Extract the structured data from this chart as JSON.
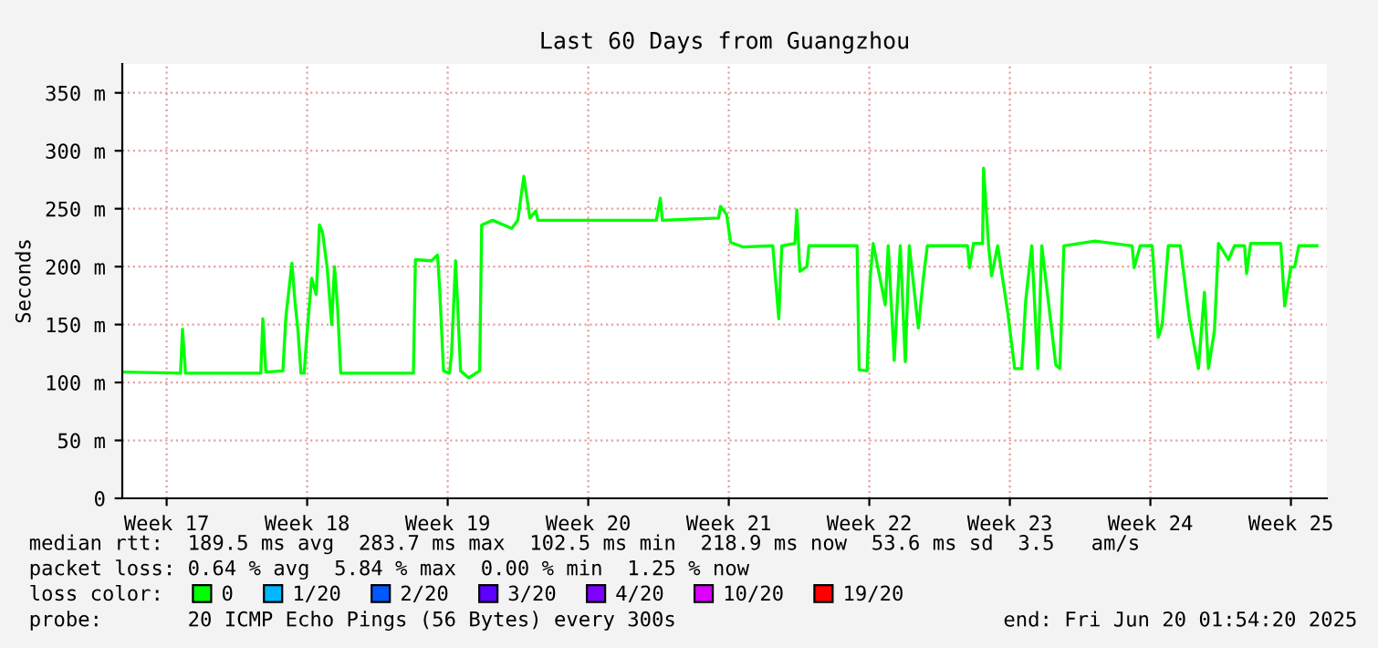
{
  "chart_data": {
    "type": "line",
    "title": "Last 60 Days from Guangzhou",
    "ylabel": "Seconds",
    "xlim": [
      "2025-04-22T07:00",
      "2025-06-21T07:00"
    ],
    "ylim": [
      0,
      375
    ],
    "xticks": [
      {
        "value": "2025-04-24T12:00",
        "label": "Week 17"
      },
      {
        "value": "2025-05-01T12:00",
        "label": "Week 18"
      },
      {
        "value": "2025-05-08T12:00",
        "label": "Week 19"
      },
      {
        "value": "2025-05-15T12:00",
        "label": "Week 20"
      },
      {
        "value": "2025-05-22T12:00",
        "label": "Week 21"
      },
      {
        "value": "2025-05-29T12:00",
        "label": "Week 22"
      },
      {
        "value": "2025-06-05T12:00",
        "label": "Week 23"
      },
      {
        "value": "2025-06-12T12:00",
        "label": "Week 24"
      },
      {
        "value": "2025-06-19T12:00",
        "label": "Week 25"
      }
    ],
    "yticks": [
      0,
      {
        "value": 50,
        "label": "50 m"
      },
      {
        "value": 100,
        "label": "100 m"
      },
      {
        "value": 150,
        "label": "150 m"
      },
      {
        "value": 200,
        "label": "200 m"
      },
      {
        "value": 250,
        "label": "250 m"
      },
      {
        "value": 300,
        "label": "300 m"
      },
      {
        "value": 350,
        "label": "350 m"
      }
    ],
    "grid": true,
    "legend": "bottom",
    "legend_title": "loss color:",
    "series": [
      {
        "name": "0",
        "color": "#00ff00",
        "x": [
          "2025-04-22T07:00",
          "2025-04-25T04:36",
          "2025-04-25T07:00",
          "2025-04-25T10:36",
          "2025-04-29T04:36",
          "2025-04-29T07:00",
          "2025-04-29T10:36",
          "2025-04-30T07:00",
          "2025-04-30T10:36",
          "2025-04-30T17:48",
          "2025-04-30T21:24",
          "2025-05-01T01:00",
          "2025-05-01T04:36",
          "2025-05-01T08:26",
          "2025-05-01T11:48",
          "2025-05-01T17:19",
          "2025-05-01T22:50",
          "2025-05-02T02:41",
          "2025-05-02T06:17",
          "2025-05-02T11:48",
          "2025-05-02T17:19",
          "2025-05-02T20:41",
          "2025-05-03T00:31",
          "2025-05-03T04:07",
          "2025-05-06T19:00",
          "2025-05-06T21:24",
          "2025-05-07T16:36",
          "2025-05-07T23:48",
          "2025-05-08T02:12",
          "2025-05-08T07:00",
          "2025-05-08T14:12",
          "2025-05-08T16:36",
          "2025-05-08T21:24",
          "2025-05-08T23:48",
          "2025-05-09T03:24",
          "2025-05-09T13:00",
          "2025-05-10T02:12",
          "2025-05-10T04:36",
          "2025-05-10T17:48",
          "2025-05-11T16:36",
          "2025-05-11T23:48",
          "2025-05-12T07:00",
          "2025-05-12T14:12",
          "2025-05-12T21:24",
          "2025-05-12T23:48",
          "2025-05-14T23:48",
          "2025-05-18T21:24",
          "2025-05-19T02:12",
          "2025-05-19T04:36",
          "2025-05-21T23:48",
          "2025-05-22T02:12",
          "2025-05-22T09:24",
          "2025-05-22T14:12",
          "2025-05-23T04:36",
          "2025-05-24T16:36",
          "2025-05-24T23:48",
          "2025-05-25T03:24",
          "2025-05-25T19:00",
          "2025-05-25T21:24",
          "2025-05-26T01:00",
          "2025-05-26T09:24",
          "2025-05-26T11:48",
          "2025-05-28T21:24",
          "2025-05-28T23:48",
          "2025-05-29T09:24",
          "2025-05-29T13:00",
          "2025-05-29T16:36",
          "2025-05-30T07:00",
          "2025-05-30T10:36",
          "2025-05-30T17:48",
          "2025-05-31T01:00",
          "2025-05-31T07:00",
          "2025-05-31T11:48",
          "2025-05-31T22:36",
          "2025-06-01T04:36",
          "2025-06-01T09:24",
          "2025-06-03T09:24",
          "2025-06-03T11:48",
          "2025-06-03T16:36",
          "2025-06-04T03:24",
          "2025-06-04T04:36",
          "2025-06-04T10:36",
          "2025-06-04T14:12",
          "2025-06-04T21:24",
          "2025-06-05T09:24",
          "2025-06-05T17:48",
          "2025-06-06T02:12",
          "2025-06-06T07:00",
          "2025-06-06T14:12",
          "2025-06-06T21:24",
          "2025-06-07T02:12",
          "2025-06-07T19:00",
          "2025-06-07T23:48",
          "2025-06-08T04:36",
          "2025-06-09T17:48",
          "2025-06-11T14:12",
          "2025-06-11T16:36",
          "2025-06-11T23:48",
          "2025-06-12T14:12",
          "2025-06-12T21:24",
          "2025-06-13T02:12",
          "2025-06-13T09:24",
          "2025-06-13T23:48",
          "2025-06-14T10:36",
          "2025-06-14T21:24",
          "2025-06-15T04:36",
          "2025-06-15T09:24",
          "2025-06-15T16:36",
          "2025-06-15T21:24",
          "2025-06-16T09:24",
          "2025-06-16T16:36",
          "2025-06-17T04:36",
          "2025-06-17T07:00",
          "2025-06-17T11:48",
          "2025-06-18T23:48",
          "2025-06-19T04:36",
          "2025-06-19T11:48",
          "2025-06-19T16:36",
          "2025-06-19T21:24",
          "2025-06-20T19:00"
        ],
        "values": [
          109,
          108,
          146,
          108,
          108,
          155,
          109,
          110,
          157,
          203,
          170,
          145,
          108,
          108,
          142,
          190,
          176,
          236,
          230,
          200,
          150,
          200,
          163,
          108,
          108,
          206,
          205,
          210,
          184,
          110,
          108,
          125,
          205,
          168,
          110,
          104,
          110,
          236,
          240,
          233,
          240,
          278,
          242,
          248,
          240,
          240,
          240,
          259,
          240,
          242,
          252,
          245,
          221,
          217,
          218,
          155,
          218,
          220,
          249,
          196,
          200,
          218,
          218,
          111,
          110,
          190,
          220,
          167,
          218,
          119,
          218,
          118,
          218,
          147,
          190,
          218,
          218,
          199,
          220,
          220,
          285,
          218,
          192,
          218,
          161,
          112,
          112,
          171,
          218,
          112,
          218,
          115,
          112,
          218,
          222,
          218,
          199,
          218,
          218,
          139,
          150,
          218,
          218,
          155,
          112,
          178,
          112,
          145,
          220,
          206,
          218,
          218,
          194,
          220,
          220,
          166,
          199,
          200,
          218,
          218
        ]
      },
      {
        "name": "1/20",
        "color": "#00b8ff"
      },
      {
        "name": "2/20",
        "color": "#0059ff"
      },
      {
        "name": "3/20",
        "color": "#5e00ff"
      },
      {
        "name": "4/20",
        "color": "#7e00ff"
      },
      {
        "name": "10/20",
        "color": "#dd00ff"
      },
      {
        "name": "19/20",
        "color": "#ff0000"
      }
    ],
    "annotations": [
      "median rtt:  189.5 ms avg  283.7 ms max  102.5 ms min  218.9 ms now  53.6 ms sd  3.5   am/s",
      "packet loss: 0.64 % avg  5.84 % max  0.00 % min  1.25 % now",
      "probe:       20 ICMP Echo Pings (56 Bytes) every 300s",
      "end: Fri Jun 20 01:54:20 2025"
    ]
  }
}
